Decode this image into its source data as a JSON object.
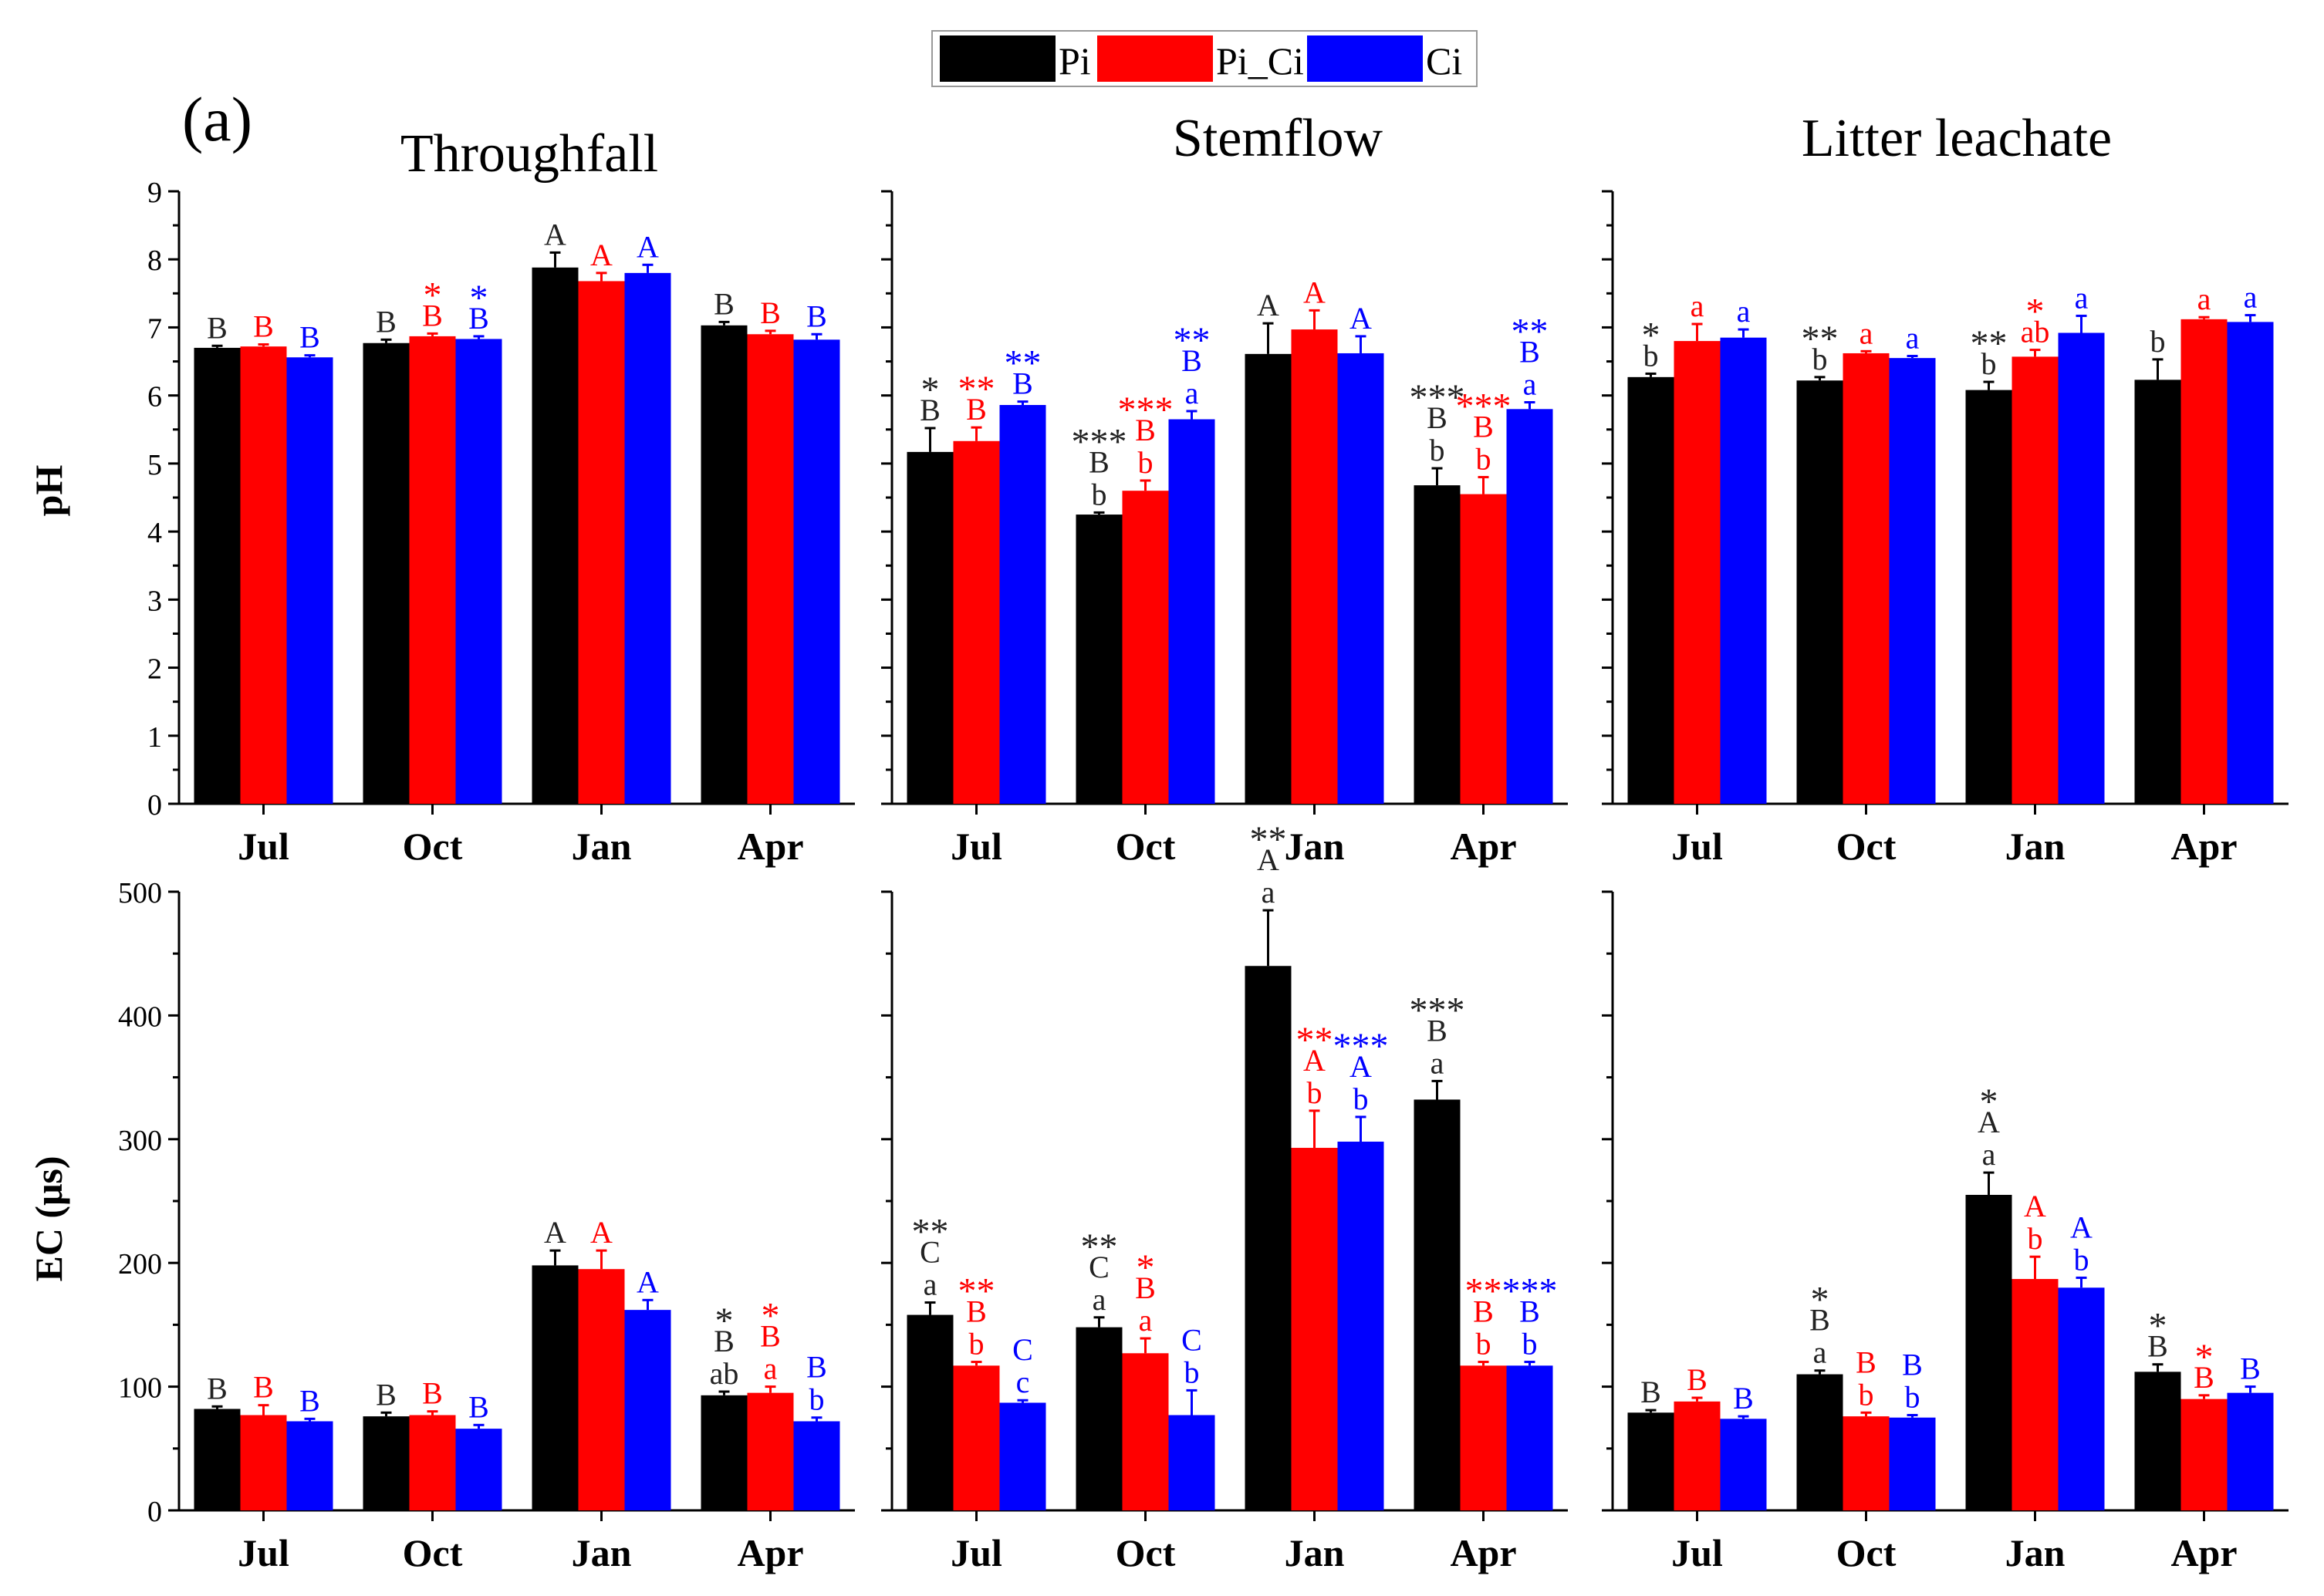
{
  "figure": {
    "panel_label": "(a)",
    "legend": [
      {
        "name": "Pi",
        "color": "#000000"
      },
      {
        "name": "Pi_Ci",
        "color": "#ff0000"
      },
      {
        "name": "Ci",
        "color": "#0000ff"
      }
    ],
    "colors": {
      "Pi": "#000000",
      "Pi_Ci": "#ff0000",
      "Ci": "#0000ff"
    },
    "columns": [
      "Throughfall",
      "Stemflow",
      "Litter leachate"
    ],
    "row_ylabels": [
      "pH",
      "EC (μs)"
    ]
  },
  "chart_data": [
    {
      "type": "bar",
      "title": "Throughfall",
      "ylabel": "pH",
      "ylim": [
        0,
        9
      ],
      "yticks": [
        "0",
        "1",
        "2",
        "3",
        "4",
        "5",
        "6",
        "7",
        "8",
        "9"
      ],
      "categories": [
        "Jul",
        "Oct",
        "Jan",
        "Apr"
      ],
      "series": [
        {
          "name": "Pi",
          "values": [
            6.7,
            6.77,
            7.88,
            7.03
          ],
          "errors": [
            0.03,
            0.05,
            0.22,
            0.05
          ],
          "labels": [
            [
              "B"
            ],
            [
              "B"
            ],
            [
              "A"
            ],
            [
              "B"
            ]
          ]
        },
        {
          "name": "Pi_Ci",
          "values": [
            6.72,
            6.87,
            7.68,
            6.9
          ],
          "errors": [
            0.03,
            0.04,
            0.12,
            0.05
          ],
          "labels": [
            [
              "B"
            ],
            [
              "*",
              "B"
            ],
            [
              "A"
            ],
            [
              "B"
            ]
          ]
        },
        {
          "name": "Ci",
          "values": [
            6.56,
            6.83,
            7.8,
            6.82
          ],
          "errors": [
            0.03,
            0.04,
            0.12,
            0.08
          ],
          "labels": [
            [
              "B"
            ],
            [
              "*",
              "B"
            ],
            [
              "A"
            ],
            [
              "B"
            ]
          ]
        }
      ]
    },
    {
      "type": "bar",
      "title": "Stemflow",
      "ylabel": "pH",
      "ylim": [
        0,
        9
      ],
      "categories": [
        "Jul",
        "Oct",
        "Jan",
        "Apr"
      ],
      "series": [
        {
          "name": "Pi",
          "values": [
            5.17,
            4.25,
            6.61,
            4.68
          ],
          "errors": [
            0.35,
            0.03,
            0.45,
            0.25
          ],
          "labels": [
            [
              "*",
              "B"
            ],
            [
              "***",
              "B",
              "b"
            ],
            [
              "A"
            ],
            [
              "***",
              "B",
              "b"
            ]
          ]
        },
        {
          "name": "Pi_Ci",
          "values": [
            5.33,
            4.6,
            6.97,
            4.55
          ],
          "errors": [
            0.2,
            0.15,
            0.28,
            0.25
          ],
          "labels": [
            [
              "**",
              "B"
            ],
            [
              "***",
              "B",
              "b"
            ],
            [
              "A"
            ],
            [
              "***",
              "B",
              "b"
            ]
          ]
        },
        {
          "name": "Ci",
          "values": [
            5.86,
            5.65,
            6.62,
            5.8
          ],
          "errors": [
            0.05,
            0.12,
            0.25,
            0.1
          ],
          "labels": [
            [
              "**",
              "B"
            ],
            [
              "**",
              "B",
              "a"
            ],
            [
              "A"
            ],
            [
              "**",
              "B",
              "a"
            ]
          ]
        }
      ]
    },
    {
      "type": "bar",
      "title": "Litter leachate",
      "ylabel": "pH",
      "ylim": [
        0,
        9
      ],
      "categories": [
        "Jul",
        "Oct",
        "Jan",
        "Apr"
      ],
      "series": [
        {
          "name": "Pi",
          "values": [
            6.27,
            6.22,
            6.08,
            6.23
          ],
          "errors": [
            0.05,
            0.05,
            0.12,
            0.3
          ],
          "labels": [
            [
              "*",
              "b"
            ],
            [
              "**",
              "b"
            ],
            [
              "**",
              "b"
            ],
            [
              "b"
            ]
          ]
        },
        {
          "name": "Pi_Ci",
          "values": [
            6.8,
            6.62,
            6.57,
            7.12
          ],
          "errors": [
            0.25,
            0.03,
            0.1,
            0.03
          ],
          "labels": [
            [
              "a"
            ],
            [
              "a"
            ],
            [
              "*",
              "ab"
            ],
            [
              "a"
            ]
          ]
        },
        {
          "name": "Ci",
          "values": [
            6.85,
            6.55,
            6.92,
            7.08
          ],
          "errors": [
            0.12,
            0.03,
            0.25,
            0.1
          ],
          "labels": [
            [
              "a"
            ],
            [
              "a"
            ],
            [
              "a"
            ],
            [
              "a"
            ]
          ]
        }
      ]
    },
    {
      "type": "bar",
      "title": "Throughfall",
      "ylabel": "EC (μs)",
      "ylim": [
        0,
        500
      ],
      "yticks": [
        "0",
        "100",
        "200",
        "300",
        "400",
        "500"
      ],
      "categories": [
        "Jul",
        "Oct",
        "Jan",
        "Apr"
      ],
      "series": [
        {
          "name": "Pi",
          "values": [
            82,
            76,
            198,
            93
          ],
          "errors": [
            2,
            3,
            12,
            3
          ],
          "labels": [
            [
              "B"
            ],
            [
              "B"
            ],
            [
              "A"
            ],
            [
              "*",
              "B",
              "ab"
            ]
          ]
        },
        {
          "name": "Pi_Ci",
          "values": [
            77,
            77,
            195,
            95
          ],
          "errors": [
            8,
            3,
            15,
            5
          ],
          "labels": [
            [
              "B"
            ],
            [
              "B"
            ],
            [
              "A"
            ],
            [
              "*",
              "B",
              "a"
            ]
          ]
        },
        {
          "name": "Ci",
          "values": [
            72,
            66,
            162,
            72
          ],
          "errors": [
            2,
            3,
            8,
            3
          ],
          "labels": [
            [
              "B"
            ],
            [
              "B"
            ],
            [
              "A"
            ],
            [
              "B",
              "b"
            ]
          ]
        }
      ]
    },
    {
      "type": "bar",
      "title": "Stemflow",
      "ylabel": "EC (μs)",
      "ylim": [
        0,
        500
      ],
      "categories": [
        "Jul",
        "Oct",
        "Jan",
        "Apr"
      ],
      "series": [
        {
          "name": "Pi",
          "values": [
            158,
            148,
            440,
            332
          ],
          "errors": [
            10,
            8,
            45,
            15
          ],
          "labels": [
            [
              "**",
              "C",
              "a"
            ],
            [
              "**",
              "C",
              "a"
            ],
            [
              "**",
              "A",
              "a"
            ],
            [
              "***",
              "B",
              "a"
            ]
          ]
        },
        {
          "name": "Pi_Ci",
          "values": [
            117,
            127,
            293,
            117
          ],
          "errors": [
            3,
            12,
            30,
            3
          ],
          "labels": [
            [
              "**",
              "B",
              "b"
            ],
            [
              "*",
              "B",
              "a"
            ],
            [
              "**",
              "A",
              "b"
            ],
            [
              "**",
              "B",
              "b"
            ]
          ]
        },
        {
          "name": "Ci",
          "values": [
            87,
            77,
            298,
            117
          ],
          "errors": [
            2,
            20,
            20,
            3
          ],
          "labels": [
            [
              "C",
              "c"
            ],
            [
              "C",
              "b"
            ],
            [
              "***",
              "A",
              "b"
            ],
            [
              "***",
              "B",
              "b"
            ]
          ]
        }
      ]
    },
    {
      "type": "bar",
      "title": "Litter leachate",
      "ylabel": "EC (μs)",
      "ylim": [
        0,
        500
      ],
      "categories": [
        "Jul",
        "Oct",
        "Jan",
        "Apr"
      ],
      "series": [
        {
          "name": "Pi",
          "values": [
            79,
            110,
            255,
            112
          ],
          "errors": [
            2,
            3,
            18,
            6
          ],
          "labels": [
            [
              "B"
            ],
            [
              "*",
              "B",
              "a"
            ],
            [
              "*",
              "A",
              "a"
            ],
            [
              "*",
              "B"
            ]
          ]
        },
        {
          "name": "Pi_Ci",
          "values": [
            88,
            76,
            187,
            90
          ],
          "errors": [
            3,
            3,
            18,
            3
          ],
          "labels": [
            [
              "B"
            ],
            [
              "B",
              "b"
            ],
            [
              "A",
              "b"
            ],
            [
              "*",
              "B"
            ]
          ]
        },
        {
          "name": "Ci",
          "values": [
            74,
            75,
            180,
            95
          ],
          "errors": [
            2,
            2,
            8,
            5
          ],
          "labels": [
            [
              "B"
            ],
            [
              "B",
              "b"
            ],
            [
              "A",
              "b"
            ],
            [
              "B"
            ]
          ]
        }
      ]
    }
  ]
}
